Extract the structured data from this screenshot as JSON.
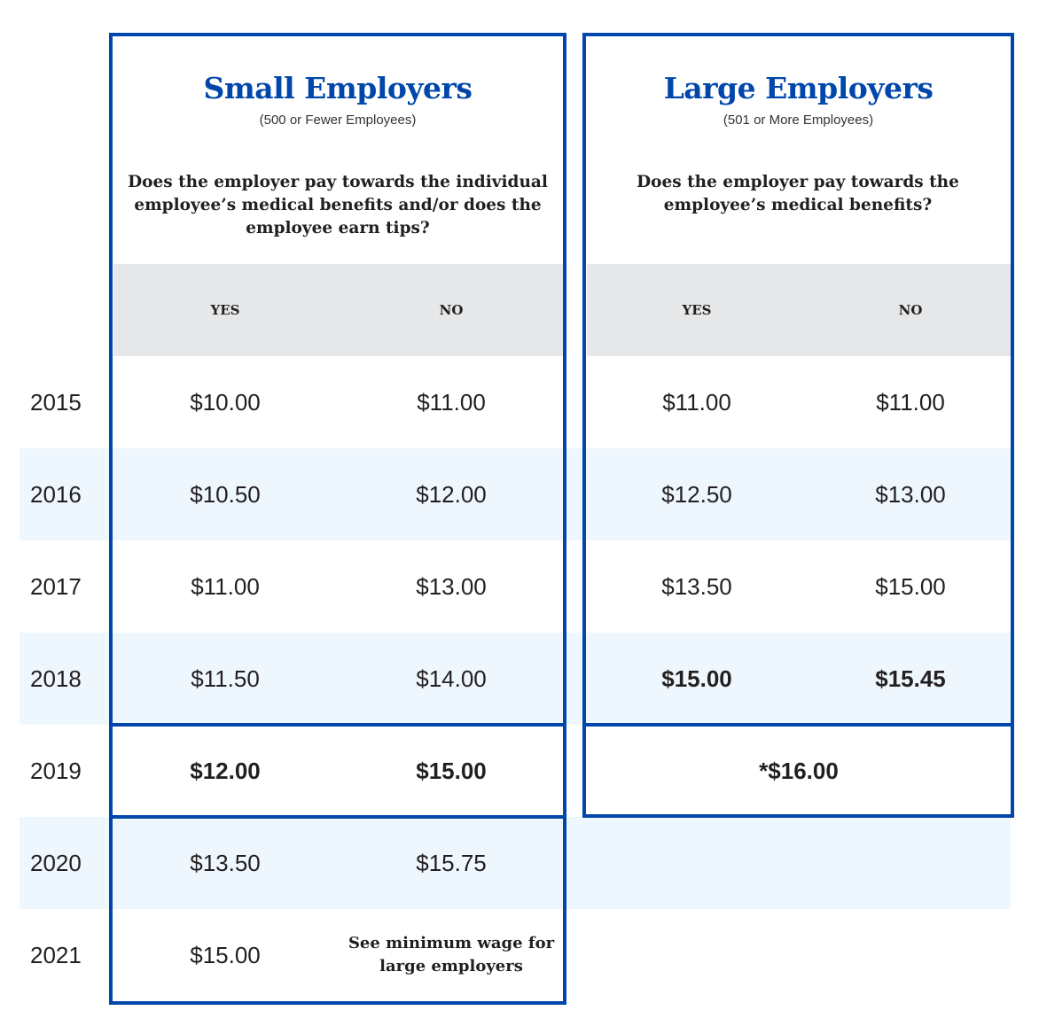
{
  "small": {
    "title": "Small Employers",
    "subtitle": "(500 or Fewer Employees)",
    "question": "Does the employer pay towards the individual employee’s medical benefits and/or does the employee earn tips?",
    "yes_label": "YES",
    "no_label": "NO"
  },
  "large": {
    "title": "Large Employers",
    "subtitle": "(501 or More Employees)",
    "question": "Does the employer pay towards the employee’s medical benefits?",
    "yes_label": "YES",
    "no_label": "NO"
  },
  "rows": [
    {
      "year": "2015",
      "small_yes": "$10.00",
      "small_no": "$11.00",
      "large_yes": "$11.00",
      "large_no": "$11.00"
    },
    {
      "year": "2016",
      "small_yes": "$10.50",
      "small_no": "$12.00",
      "large_yes": "$12.50",
      "large_no": "$13.00"
    },
    {
      "year": "2017",
      "small_yes": "$11.00",
      "small_no": "$13.00",
      "large_yes": "$13.50",
      "large_no": "$15.00"
    },
    {
      "year": "2018",
      "small_yes": "$11.50",
      "small_no": "$14.00",
      "large_yes": "$15.00",
      "large_no": "$15.45"
    },
    {
      "year": "2019",
      "small_yes": "$12.00",
      "small_no": "$15.00",
      "large_combined": "*$16.00"
    },
    {
      "year": "2020",
      "small_yes": "$13.50",
      "small_no": "$15.75"
    },
    {
      "year": "2021",
      "small_yes": "$15.00",
      "small_no": "See minimum wage for large employers"
    }
  ],
  "colors": {
    "accent": "#0047ab",
    "band": "#eef7fd",
    "header_gray": "#e6e7e8"
  }
}
